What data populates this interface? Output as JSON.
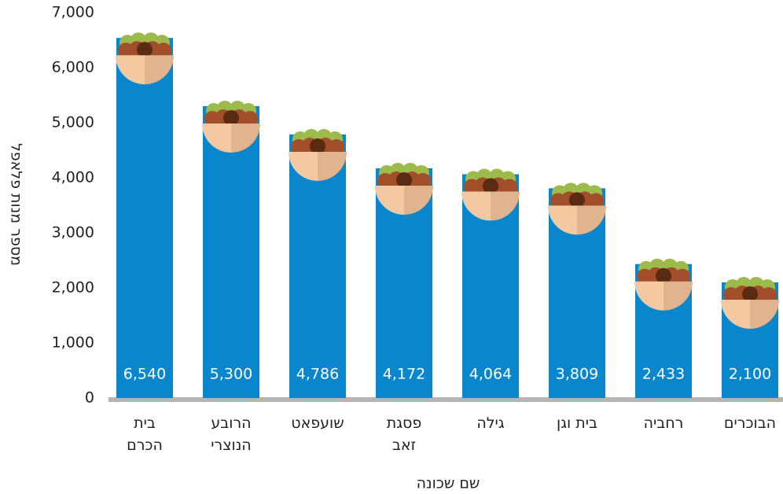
{
  "chart_data": {
    "type": "bar",
    "y_label": "מספר מנות פלאפל",
    "x_label": "שם שכונה",
    "categories": [
      "בית\nהכרם",
      "הרובע\nהנוצרי",
      "שועפאט",
      "פסגת\nזאב",
      "גילה",
      "בית וגן",
      "רחביה",
      "הבוכרים"
    ],
    "values": [
      6540,
      5300,
      4786,
      4172,
      4064,
      3809,
      2433,
      2100
    ],
    "value_labels": [
      "6,540",
      "5,300",
      "4,786",
      "4,172",
      "4,064",
      "3,809",
      "2,433",
      "2,100"
    ],
    "color": "#0a87cc",
    "ylim": [
      0,
      7000
    ],
    "yticks": [
      0,
      {
        "value": 1000,
        "label": "1,000"
      },
      {
        "value": 2000,
        "label": "2,000"
      },
      {
        "value": 3000,
        "label": "3,000"
      },
      {
        "value": 4000,
        "label": "4,000"
      },
      {
        "value": 5000,
        "label": "5,000"
      },
      {
        "value": 6000,
        "label": "6,000"
      },
      {
        "value": 7000,
        "label": "7,000"
      }
    ]
  }
}
